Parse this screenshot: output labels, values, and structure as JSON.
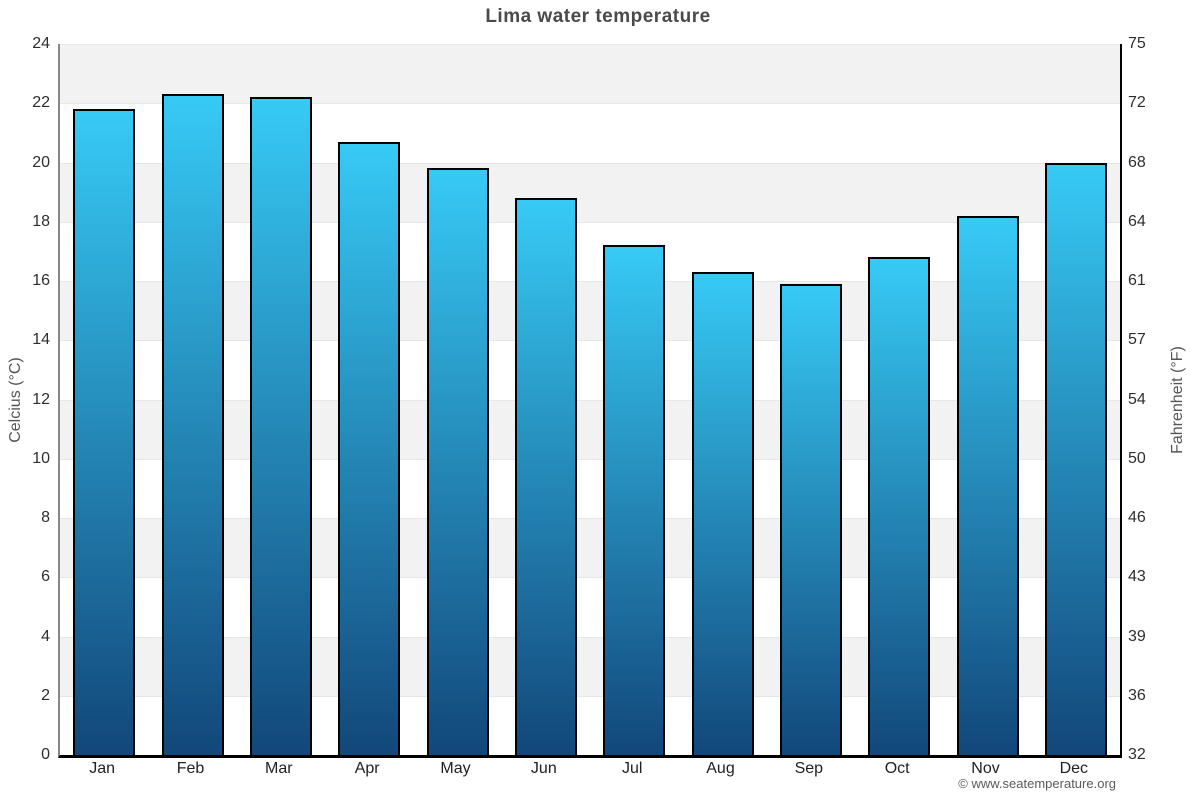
{
  "title": "Lima water temperature",
  "footer": "© www.seatemperature.org",
  "chart_data": {
    "type": "bar",
    "title": "Lima water temperature",
    "categories": [
      "Jan",
      "Feb",
      "Mar",
      "Apr",
      "May",
      "Jun",
      "Jul",
      "Aug",
      "Sep",
      "Oct",
      "Nov",
      "Dec"
    ],
    "values": [
      21.8,
      22.3,
      22.2,
      20.7,
      19.8,
      18.8,
      17.2,
      16.3,
      15.9,
      16.8,
      18.2,
      20.0
    ],
    "xlabel": "",
    "ylabel_left": "Celcius (°C)",
    "ylabel_right": "Fahrenheit (°F)",
    "ylim": [
      0,
      24
    ],
    "yticks_celsius": [
      24,
      22,
      20,
      18,
      16,
      14,
      12,
      10,
      8,
      6,
      4,
      2,
      0
    ],
    "yticks_fahrenheit": [
      75,
      72,
      68,
      64,
      61,
      57,
      54,
      50,
      46,
      43,
      39,
      36,
      32
    ],
    "grid": true,
    "legend": "none",
    "colors": {
      "bar_gradient_top": "#37caf5",
      "bar_gradient_bottom": "#12477a",
      "bar_border": "#010101",
      "band_fill": "#f2f2f2",
      "gridline": "#e6e6e6",
      "title_text": "#4a4a4a",
      "tick_text": "#2e2e2e",
      "axis_title_text": "#555555"
    }
  }
}
